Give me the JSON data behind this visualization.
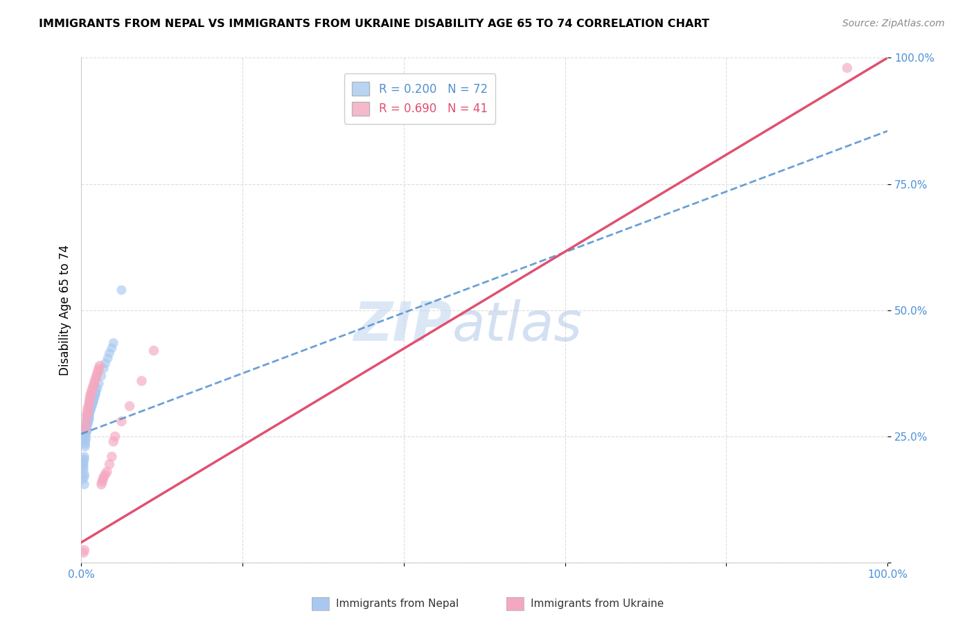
{
  "title": "IMMIGRANTS FROM NEPAL VS IMMIGRANTS FROM UKRAINE DISABILITY AGE 65 TO 74 CORRELATION CHART",
  "source": "Source: ZipAtlas.com",
  "ylabel": "Disability Age 65 to 74",
  "xlim": [
    0,
    1.0
  ],
  "ylim": [
    0,
    1.0
  ],
  "nepal_R": 0.2,
  "nepal_N": 72,
  "ukraine_R": 0.69,
  "ukraine_N": 41,
  "nepal_color": "#A8C8F0",
  "ukraine_color": "#F4A8C0",
  "nepal_line_color": "#5090D0",
  "ukraine_line_color": "#E05070",
  "nepal_line_dash": true,
  "nepal_intercept": 0.255,
  "nepal_slope": 0.6,
  "ukraine_intercept": 0.04,
  "ukraine_slope": 0.96,
  "nepal_x": [
    0.002,
    0.003,
    0.003,
    0.004,
    0.004,
    0.004,
    0.005,
    0.005,
    0.005,
    0.005,
    0.005,
    0.006,
    0.006,
    0.006,
    0.007,
    0.007,
    0.007,
    0.008,
    0.008,
    0.008,
    0.009,
    0.009,
    0.009,
    0.01,
    0.01,
    0.01,
    0.01,
    0.011,
    0.011,
    0.012,
    0.012,
    0.013,
    0.013,
    0.014,
    0.014,
    0.015,
    0.015,
    0.016,
    0.017,
    0.018,
    0.003,
    0.003,
    0.004,
    0.004,
    0.005,
    0.005,
    0.006,
    0.006,
    0.007,
    0.007,
    0.008,
    0.008,
    0.009,
    0.01,
    0.011,
    0.012,
    0.013,
    0.014,
    0.015,
    0.016,
    0.017,
    0.018,
    0.02,
    0.022,
    0.025,
    0.028,
    0.03,
    0.033,
    0.035,
    0.038,
    0.04,
    0.05
  ],
  "nepal_y": [
    0.165,
    0.2,
    0.185,
    0.17,
    0.175,
    0.155,
    0.265,
    0.26,
    0.255,
    0.25,
    0.23,
    0.27,
    0.265,
    0.26,
    0.275,
    0.27,
    0.285,
    0.28,
    0.275,
    0.29,
    0.285,
    0.295,
    0.28,
    0.3,
    0.295,
    0.29,
    0.285,
    0.305,
    0.3,
    0.31,
    0.305,
    0.315,
    0.31,
    0.32,
    0.315,
    0.325,
    0.32,
    0.33,
    0.335,
    0.34,
    0.195,
    0.19,
    0.21,
    0.205,
    0.235,
    0.24,
    0.245,
    0.255,
    0.26,
    0.27,
    0.275,
    0.28,
    0.285,
    0.295,
    0.3,
    0.305,
    0.31,
    0.315,
    0.32,
    0.325,
    0.33,
    0.335,
    0.345,
    0.355,
    0.37,
    0.385,
    0.395,
    0.405,
    0.415,
    0.425,
    0.435,
    0.54
  ],
  "ukraine_x": [
    0.003,
    0.004,
    0.005,
    0.005,
    0.006,
    0.007,
    0.007,
    0.008,
    0.008,
    0.009,
    0.01,
    0.01,
    0.011,
    0.011,
    0.012,
    0.013,
    0.014,
    0.015,
    0.016,
    0.017,
    0.018,
    0.019,
    0.02,
    0.021,
    0.022,
    0.023,
    0.025,
    0.026,
    0.027,
    0.028,
    0.03,
    0.032,
    0.035,
    0.038,
    0.04,
    0.042,
    0.05,
    0.06,
    0.075,
    0.09,
    0.95
  ],
  "ukraine_y": [
    0.02,
    0.025,
    0.265,
    0.27,
    0.28,
    0.29,
    0.295,
    0.3,
    0.305,
    0.31,
    0.315,
    0.32,
    0.325,
    0.33,
    0.335,
    0.34,
    0.345,
    0.35,
    0.355,
    0.36,
    0.365,
    0.37,
    0.375,
    0.38,
    0.385,
    0.39,
    0.155,
    0.16,
    0.165,
    0.17,
    0.175,
    0.18,
    0.195,
    0.21,
    0.24,
    0.25,
    0.28,
    0.31,
    0.36,
    0.42,
    0.98
  ],
  "grid_color": "#DDDDDD",
  "watermark_zip_color": "#C5D8F0",
  "watermark_atlas_color": "#B0C8E8"
}
